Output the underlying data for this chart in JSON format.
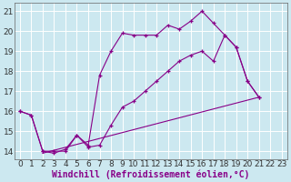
{
  "xlabel": "Windchill (Refroidissement éolien,°C)",
  "background_color": "#cce8f0",
  "grid_color": "#ffffff",
  "line_color": "#880088",
  "xlim": [
    -0.5,
    23.5
  ],
  "ylim": [
    13.6,
    21.4
  ],
  "yticks": [
    14,
    15,
    16,
    17,
    18,
    19,
    20,
    21
  ],
  "xticks": [
    0,
    1,
    2,
    3,
    4,
    5,
    6,
    7,
    8,
    9,
    10,
    11,
    12,
    13,
    14,
    15,
    16,
    17,
    18,
    19,
    20,
    21,
    22,
    23
  ],
  "line1_x": [
    0,
    1,
    2,
    3,
    4,
    5,
    6,
    7,
    8,
    9,
    10,
    11,
    12,
    13,
    14,
    15,
    16,
    17,
    18,
    19,
    20,
    21
  ],
  "line1_y": [
    16.0,
    15.8,
    14.0,
    14.0,
    14.0,
    14.8,
    14.3,
    17.8,
    19.0,
    19.9,
    19.8,
    19.8,
    19.8,
    20.3,
    20.1,
    20.5,
    21.0,
    20.4,
    19.8,
    19.2,
    17.5,
    16.7
  ],
  "line2_x": [
    0,
    1,
    2,
    3,
    4,
    5,
    6,
    7,
    8,
    9,
    10,
    11,
    12,
    13,
    14,
    15,
    16,
    17,
    18,
    19,
    20,
    21
  ],
  "line2_y": [
    16.0,
    15.8,
    14.0,
    13.9,
    14.1,
    14.8,
    14.2,
    14.3,
    15.3,
    16.2,
    16.5,
    17.0,
    17.5,
    18.0,
    18.5,
    18.8,
    19.0,
    18.5,
    19.8,
    19.2,
    17.5,
    16.7
  ],
  "line3_x": [
    2,
    21
  ],
  "line3_y": [
    13.9,
    16.7
  ],
  "tick_fontsize": 6.5,
  "xlabel_fontsize": 7.0,
  "figwidth": 3.2,
  "figheight": 2.0,
  "dpi": 100
}
